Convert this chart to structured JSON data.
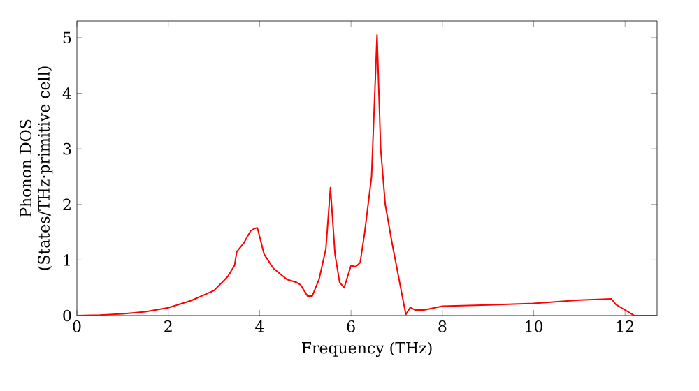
{
  "chart_data": {
    "type": "line",
    "xlabel": "Frequency (THz)",
    "ylabel": "Phonon DOS\n(States/THz·primitive cell)",
    "xlim": [
      0,
      12.7
    ],
    "ylim": [
      0,
      5.3
    ],
    "xticks": [
      0,
      2,
      4,
      6,
      8,
      10,
      12
    ],
    "yticks": [
      0,
      1,
      2,
      3,
      4,
      5
    ],
    "marker": "none",
    "line_style": "solid",
    "series": [
      {
        "color": "#ff0000",
        "x": [
          0,
          0.5,
          1,
          1.5,
          2,
          2.5,
          3,
          3.3,
          3.45,
          3.5,
          3.65,
          3.8,
          3.9,
          3.95,
          4.1,
          4.3,
          4.6,
          4.8,
          4.9,
          5.05,
          5.15,
          5.3,
          5.45,
          5.55,
          5.65,
          5.75,
          5.85,
          6.0,
          6.1,
          6.2,
          6.3,
          6.45,
          6.57,
          6.65,
          6.75,
          6.9,
          7.2,
          7.3,
          7.4,
          7.6,
          8.0,
          9,
          10,
          11,
          11.7,
          11.8,
          12.0,
          12.2,
          12.7
        ],
        "values": [
          0,
          0.01,
          0.03,
          0.07,
          0.14,
          0.27,
          0.45,
          0.7,
          0.9,
          1.15,
          1.3,
          1.52,
          1.57,
          1.58,
          1.1,
          0.85,
          0.65,
          0.6,
          0.55,
          0.35,
          0.35,
          0.65,
          1.2,
          2.3,
          1.1,
          0.6,
          0.5,
          0.9,
          0.88,
          0.95,
          1.5,
          2.5,
          5.05,
          3.0,
          2.0,
          1.3,
          0.02,
          0.15,
          0.1,
          0.1,
          0.17,
          0.19,
          0.22,
          0.28,
          0.3,
          0.2,
          0.1,
          0,
          0
        ]
      }
    ]
  }
}
